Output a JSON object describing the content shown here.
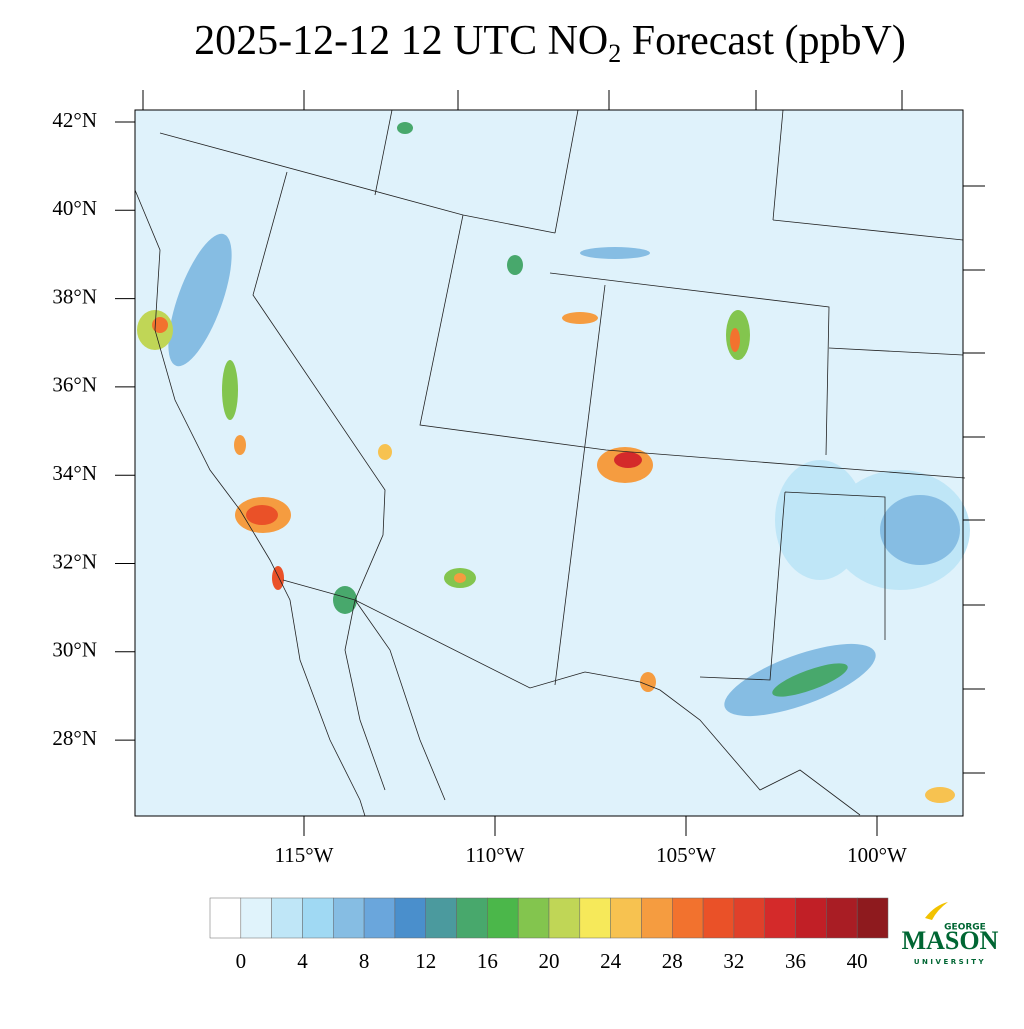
{
  "title": {
    "main": "2025-12-12 12 UTC NO",
    "subscript": "2",
    "suffix": " Forecast (ppbV)"
  },
  "map": {
    "lat_ticks": [
      {
        "value": 42,
        "label": "42°N"
      },
      {
        "value": 40,
        "label": "40°N"
      },
      {
        "value": 38,
        "label": "38°N"
      },
      {
        "value": 36,
        "label": "36°N"
      },
      {
        "value": 34,
        "label": "34°N"
      },
      {
        "value": 32,
        "label": "32°N"
      },
      {
        "value": 30,
        "label": "30°N"
      },
      {
        "value": 28,
        "label": "28°N"
      }
    ],
    "lon_ticks": [
      {
        "value": -115,
        "label": "115°W"
      },
      {
        "value": -110,
        "label": "110°W"
      },
      {
        "value": -105,
        "label": "105°W"
      },
      {
        "value": -100,
        "label": "100°W"
      }
    ]
  },
  "colorbar": {
    "colors": [
      "#ffffff",
      "#e0f3fb",
      "#bfe6f7",
      "#a0d9f3",
      "#86bde3",
      "#6aa6dc",
      "#4a8fcc",
      "#4b9a9e",
      "#48a86c",
      "#4bb74a",
      "#83c54e",
      "#c0d656",
      "#f6e95a",
      "#f7c250",
      "#f59c40",
      "#f2722e",
      "#ea5128",
      "#e0402a",
      "#d42a2a",
      "#c11f26",
      "#a91d24",
      "#8e1a1e"
    ],
    "ticks": [
      0,
      4,
      8,
      12,
      16,
      20,
      24,
      28,
      32,
      36,
      40
    ]
  },
  "logo": {
    "top": "GEORGE",
    "main": "MASON",
    "bottom": "UNIVERSITY"
  }
}
